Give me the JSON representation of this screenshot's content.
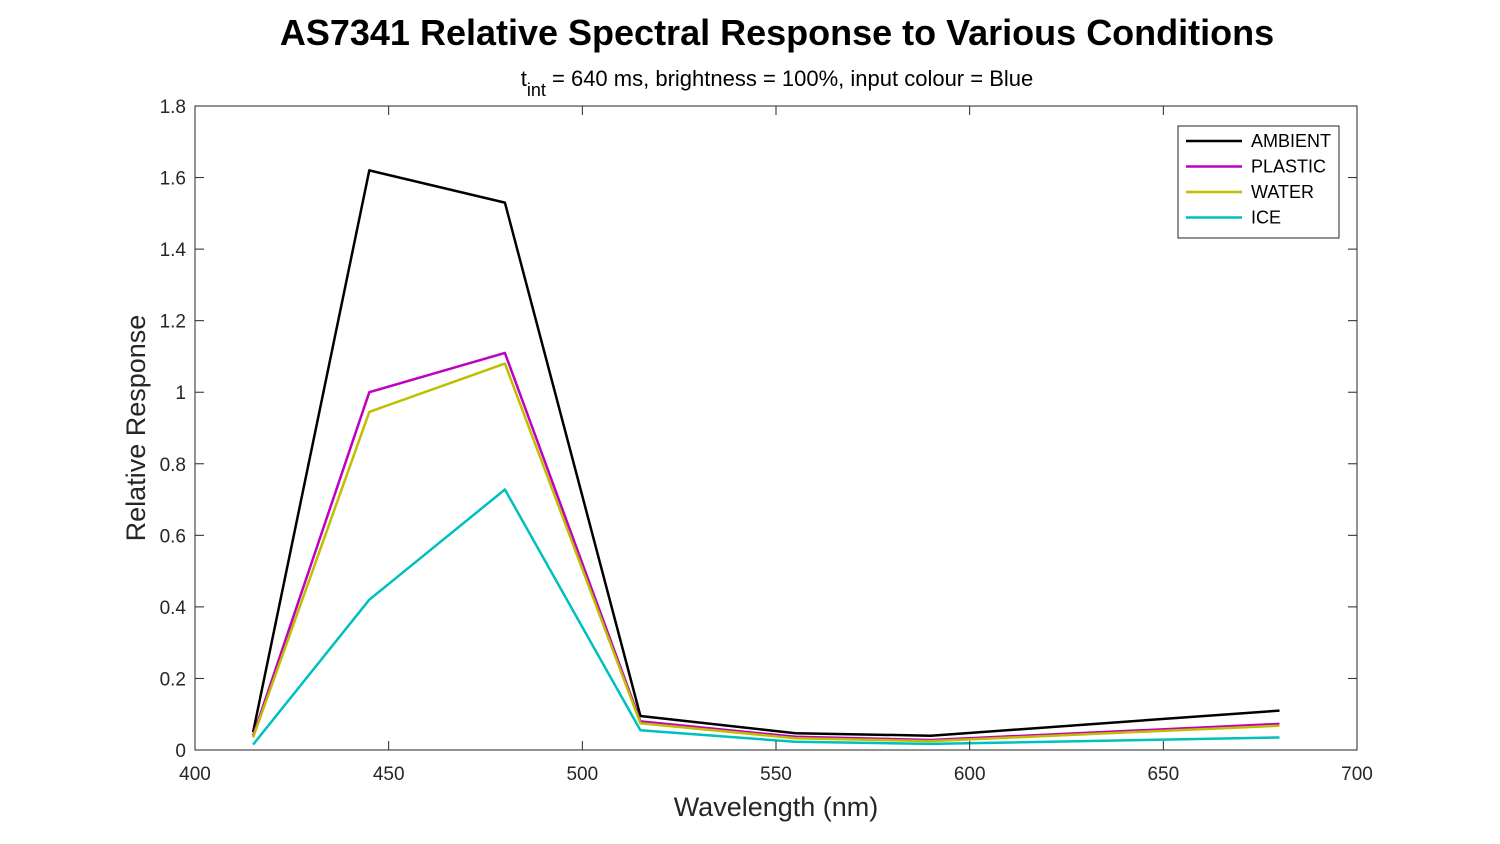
{
  "chart_data": {
    "type": "line",
    "title": "AS7341 Relative Spectral Response to Various Conditions",
    "subtitle": {
      "base": "t",
      "subscript": "int",
      "rest": " = 640 ms, brightness = 100%, input colour = Blue"
    },
    "xlabel": "Wavelength (nm)",
    "ylabel": "Relative Response",
    "xlim": [
      400,
      700
    ],
    "ylim": [
      0,
      1.8
    ],
    "xticks": [
      400,
      450,
      500,
      550,
      600,
      650,
      700
    ],
    "xtick_labels": [
      "400",
      "450",
      "500",
      "550",
      "600",
      "650",
      "700"
    ],
    "yticks": [
      0,
      0.2,
      0.4,
      0.6,
      0.8,
      1,
      1.2,
      1.4,
      1.6,
      1.8
    ],
    "ytick_labels": [
      "0",
      "0.2",
      "0.4",
      "0.6",
      "0.8",
      "1",
      "1.2",
      "1.4",
      "1.6",
      "1.8"
    ],
    "grid": false,
    "legend_position": "top-right",
    "x": [
      415,
      445,
      480,
      515,
      555,
      590,
      680
    ],
    "series": [
      {
        "name": "AMBIENT",
        "color": "#000000",
        "values": [
          0.05,
          1.62,
          1.53,
          0.095,
          0.047,
          0.04,
          0.11
        ]
      },
      {
        "name": "PLASTIC",
        "color": "#BF00BF",
        "values": [
          0.04,
          1.0,
          1.11,
          0.08,
          0.037,
          0.028,
          0.073
        ]
      },
      {
        "name": "WATER",
        "color": "#BFBF00",
        "values": [
          0.035,
          0.945,
          1.08,
          0.075,
          0.033,
          0.025,
          0.068
        ]
      },
      {
        "name": "ICE",
        "color": "#00BFBF",
        "values": [
          0.015,
          0.42,
          0.728,
          0.055,
          0.023,
          0.017,
          0.035
        ]
      }
    ]
  }
}
